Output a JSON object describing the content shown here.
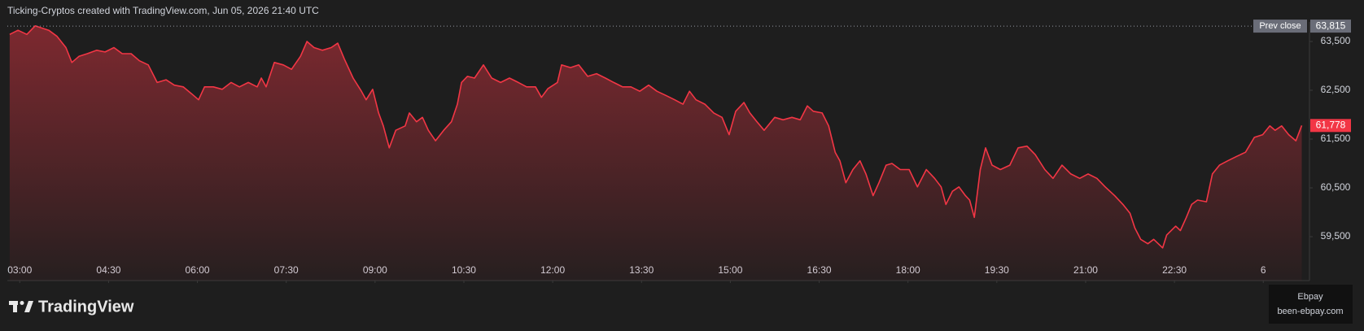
{
  "header": "Ticking-Cryptos created with TradingView.com, Jun 05, 2026 21:40 UTC",
  "brand": "TradingView",
  "watermark": {
    "name": "Ebpay",
    "site": "been-ebpay.com"
  },
  "chart_data": {
    "type": "area",
    "color": "#f23645",
    "x": [
      2.83,
      2.97,
      3.12,
      3.26,
      3.49,
      3.63,
      3.78,
      3.88,
      4.0,
      4.14,
      4.3,
      4.44,
      4.59,
      4.73,
      4.88,
      5.02,
      5.17,
      5.32,
      5.47,
      5.61,
      5.76,
      5.9,
      6.02,
      6.12,
      6.27,
      6.42,
      6.57,
      6.71,
      6.86,
      7.01,
      7.08,
      7.16,
      7.3,
      7.45,
      7.59,
      7.74,
      7.85,
      7.97,
      8.11,
      8.26,
      8.37,
      8.48,
      8.63,
      8.77,
      8.85,
      8.96,
      9.06,
      9.14,
      9.24,
      9.35,
      9.51,
      9.58,
      9.7,
      9.8,
      9.9,
      10.02,
      10.16,
      10.29,
      10.39,
      10.46,
      10.56,
      10.68,
      10.83,
      10.97,
      11.12,
      11.27,
      11.42,
      11.56,
      11.71,
      11.81,
      11.92,
      12.08,
      12.15,
      12.3,
      12.44,
      12.59,
      12.74,
      12.89,
      13.03,
      13.18,
      13.32,
      13.47,
      13.62,
      13.76,
      13.91,
      14.06,
      14.2,
      14.31,
      14.42,
      14.57,
      14.72,
      14.86,
      14.98,
      15.09,
      15.23,
      15.33,
      15.45,
      15.57,
      15.75,
      15.89,
      16.04,
      16.18,
      16.3,
      16.4,
      16.55,
      16.66,
      16.77,
      16.85,
      16.95,
      17.07,
      17.19,
      17.29,
      17.41,
      17.51,
      17.63,
      17.73,
      17.87,
      18.02,
      18.16,
      18.31,
      18.45,
      18.56,
      18.64,
      18.75,
      18.86,
      18.97,
      19.04,
      19.12,
      19.22,
      19.31,
      19.42,
      19.56,
      19.72,
      19.86,
      20.01,
      20.15,
      20.31,
      20.45,
      20.6,
      20.75,
      20.9,
      21.04,
      21.19,
      21.33,
      21.49,
      21.63,
      21.75,
      21.83,
      21.93,
      22.05,
      22.15,
      22.3,
      22.37,
      22.52,
      22.6,
      22.7,
      22.79,
      22.89,
      23.04,
      23.14,
      23.26,
      23.4,
      23.55,
      23.7,
      23.85,
      23.99,
      24.11,
      24.2,
      24.31,
      24.43,
      24.55,
      24.65
    ],
    "values": [
      63645,
      63730,
      63645,
      63820,
      63730,
      63605,
      63375,
      63070,
      63195,
      63250,
      63320,
      63285,
      63375,
      63250,
      63250,
      63105,
      63020,
      62660,
      62715,
      62605,
      62570,
      62430,
      62305,
      62570,
      62570,
      62520,
      62660,
      62570,
      62660,
      62570,
      62750,
      62570,
      63070,
      63020,
      62930,
      63195,
      63500,
      63375,
      63320,
      63375,
      63465,
      63145,
      62750,
      62480,
      62305,
      62520,
      62035,
      61770,
      61320,
      61680,
      61770,
      62035,
      61855,
      61945,
      61680,
      61465,
      61680,
      61855,
      62215,
      62660,
      62785,
      62750,
      63020,
      62750,
      62660,
      62750,
      62660,
      62570,
      62570,
      62355,
      62535,
      62660,
      63020,
      62965,
      63020,
      62785,
      62840,
      62750,
      62660,
      62570,
      62570,
      62480,
      62605,
      62480,
      62395,
      62305,
      62215,
      62480,
      62305,
      62215,
      62035,
      61945,
      61590,
      62070,
      62250,
      62035,
      61855,
      61680,
      61945,
      61895,
      61945,
      61895,
      62180,
      62070,
      62035,
      61770,
      61230,
      61055,
      60605,
      60875,
      61055,
      60785,
      60340,
      60605,
      60965,
      61000,
      60875,
      60875,
      60520,
      60875,
      60695,
      60520,
      60160,
      60430,
      60520,
      60340,
      60250,
      59895,
      60875,
      61320,
      60965,
      60875,
      60965,
      61320,
      61355,
      61180,
      60875,
      60695,
      60965,
      60785,
      60695,
      60785,
      60695,
      60520,
      60340,
      60160,
      59980,
      59680,
      59445,
      59355,
      59445,
      59270,
      59535,
      59715,
      59625,
      59895,
      60160,
      60250,
      60215,
      60785,
      60965,
      61055,
      61145,
      61230,
      61535,
      61590,
      61770,
      61680,
      61770,
      61590,
      61465,
      61778
    ],
    "xlim": [
      2.79,
      24.78
    ],
    "xticks": [
      {
        "value": 3,
        "label": "03:00"
      },
      {
        "value": 4.5,
        "label": "04:30"
      },
      {
        "value": 6,
        "label": "06:00"
      },
      {
        "value": 7.5,
        "label": "07:30"
      },
      {
        "value": 9,
        "label": "09:00"
      },
      {
        "value": 10.5,
        "label": "10:30"
      },
      {
        "value": 12,
        "label": "12:00"
      },
      {
        "value": 13.5,
        "label": "13:30"
      },
      {
        "value": 15,
        "label": "15:00"
      },
      {
        "value": 16.5,
        "label": "16:30"
      },
      {
        "value": 18,
        "label": "18:00"
      },
      {
        "value": 19.5,
        "label": "19:30"
      },
      {
        "value": 21,
        "label": "21:00"
      },
      {
        "value": 22.5,
        "label": "22:30"
      },
      {
        "value": 24,
        "label": "6"
      }
    ],
    "ylim": [
      58600,
      63900
    ],
    "yticks": [
      {
        "value": 59500,
        "label": "59,500"
      },
      {
        "value": 60500,
        "label": "60,500"
      },
      {
        "value": 61500,
        "label": "61,500"
      },
      {
        "value": 62500,
        "label": "62,500"
      },
      {
        "value": 63500,
        "label": "63,500"
      }
    ],
    "prev_close": {
      "label": "Prev close",
      "value": 63815,
      "value_label": "63,815"
    },
    "last_price": {
      "value": 61778,
      "label": "61,778"
    }
  }
}
